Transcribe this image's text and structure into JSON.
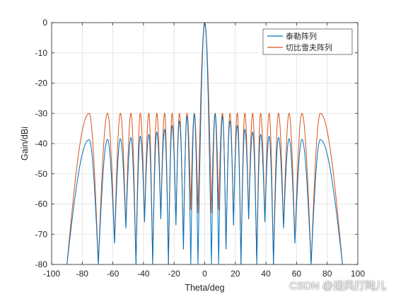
{
  "chart_data": {
    "type": "line",
    "xlabel": "Theta/deg",
    "ylabel": "Gain/dBi",
    "xlim": [
      -100,
      100
    ],
    "ylim": [
      -80,
      0
    ],
    "xticks": [
      -100,
      -80,
      -60,
      -40,
      -20,
      0,
      20,
      40,
      60,
      80,
      100
    ],
    "yticks": [
      0,
      -10,
      -20,
      -30,
      -40,
      -50,
      -60,
      -70,
      -80
    ],
    "grid": true,
    "legend_position": "top-right",
    "series": [
      {
        "name": "泰勒阵列",
        "color": "#0072BD",
        "peaks": [
          [
            -75.5,
            -38.7
          ],
          [
            -63.5,
            -38.6
          ],
          [
            -55.1,
            -38.4
          ],
          [
            -48.2,
            -38.0
          ],
          [
            -42.1,
            -37.6
          ],
          [
            -36.5,
            -37.0
          ],
          [
            -31.3,
            -36.2
          ],
          [
            -26.2,
            -35.3
          ],
          [
            -21.3,
            -34.1
          ],
          [
            -16.5,
            -32.6
          ],
          [
            -11.6,
            -31.0
          ],
          [
            -6.8,
            -30.2
          ],
          [
            6.8,
            -30.2
          ],
          [
            11.6,
            -31.0
          ],
          [
            16.5,
            -32.6
          ],
          [
            21.3,
            -34.1
          ],
          [
            26.2,
            -35.3
          ],
          [
            31.3,
            -36.2
          ],
          [
            36.5,
            -37.0
          ],
          [
            42.1,
            -37.6
          ],
          [
            48.2,
            -38.0
          ],
          [
            55.1,
            -38.4
          ],
          [
            63.5,
            -38.6
          ],
          [
            75.5,
            -38.7
          ]
        ],
        "nulls": [
          [
            -90,
            -80
          ],
          [
            -69.5,
            -80
          ],
          [
            -58.9,
            -73
          ],
          [
            -51.5,
            -68
          ],
          [
            -44.9,
            -80
          ],
          [
            -39.3,
            -66
          ],
          [
            -34.0,
            -80
          ],
          [
            -28.7,
            -65
          ],
          [
            -23.7,
            -80
          ],
          [
            -18.8,
            -67
          ],
          [
            -13.9,
            -75
          ],
          [
            -9.1,
            -80
          ],
          [
            -4.4,
            -80
          ],
          [
            4.4,
            -80
          ],
          [
            9.1,
            -80
          ],
          [
            13.9,
            -75
          ],
          [
            18.8,
            -67
          ],
          [
            23.7,
            -80
          ],
          [
            28.7,
            -65
          ],
          [
            34.0,
            -80
          ],
          [
            39.3,
            -66
          ],
          [
            44.9,
            -80
          ],
          [
            51.5,
            -68
          ],
          [
            58.9,
            -73
          ],
          [
            69.5,
            -80
          ],
          [
            90,
            -80
          ]
        ]
      },
      {
        "name": "切比雪夫阵列",
        "color": "#D95319",
        "peaks": [
          [
            -75.5,
            -30
          ],
          [
            -63.5,
            -30
          ],
          [
            -55.1,
            -30
          ],
          [
            -48.2,
            -30
          ],
          [
            -42.1,
            -30
          ],
          [
            -36.5,
            -30
          ],
          [
            -31.3,
            -30
          ],
          [
            -26.2,
            -30
          ],
          [
            -21.3,
            -30
          ],
          [
            -16.5,
            -30
          ],
          [
            -11.6,
            -30
          ],
          [
            -6.8,
            -30
          ],
          [
            6.8,
            -30
          ],
          [
            11.6,
            -30
          ],
          [
            16.5,
            -30
          ],
          [
            21.3,
            -30
          ],
          [
            26.2,
            -30
          ],
          [
            31.3,
            -30
          ],
          [
            36.5,
            -30
          ],
          [
            42.1,
            -30
          ],
          [
            48.2,
            -30
          ],
          [
            55.1,
            -30
          ],
          [
            63.5,
            -30
          ],
          [
            75.5,
            -30
          ]
        ],
        "nulls": [
          [
            -90,
            -80
          ],
          [
            -69.5,
            -80
          ],
          [
            -58.9,
            -73
          ],
          [
            -51.5,
            -68
          ],
          [
            -44.9,
            -80
          ],
          [
            -39.3,
            -66
          ],
          [
            -34.0,
            -80
          ],
          [
            -28.7,
            -65
          ],
          [
            -23.7,
            -80
          ],
          [
            -18.8,
            -67
          ],
          [
            -13.9,
            -75
          ],
          [
            -9.1,
            -62
          ],
          [
            -4.4,
            -63
          ],
          [
            4.4,
            -63
          ],
          [
            9.1,
            -62
          ],
          [
            13.9,
            -75
          ],
          [
            18.8,
            -67
          ],
          [
            23.7,
            -80
          ],
          [
            28.7,
            -65
          ],
          [
            34.0,
            -80
          ],
          [
            39.3,
            -66
          ],
          [
            44.9,
            -80
          ],
          [
            51.5,
            -68
          ],
          [
            58.9,
            -73
          ],
          [
            69.5,
            -80
          ],
          [
            90,
            -80
          ]
        ]
      }
    ],
    "main_lobe": {
      "peak": [
        0,
        0
      ],
      "half_width_deg": 3.2
    }
  },
  "watermark": "CSDN @迎风打盹儿"
}
